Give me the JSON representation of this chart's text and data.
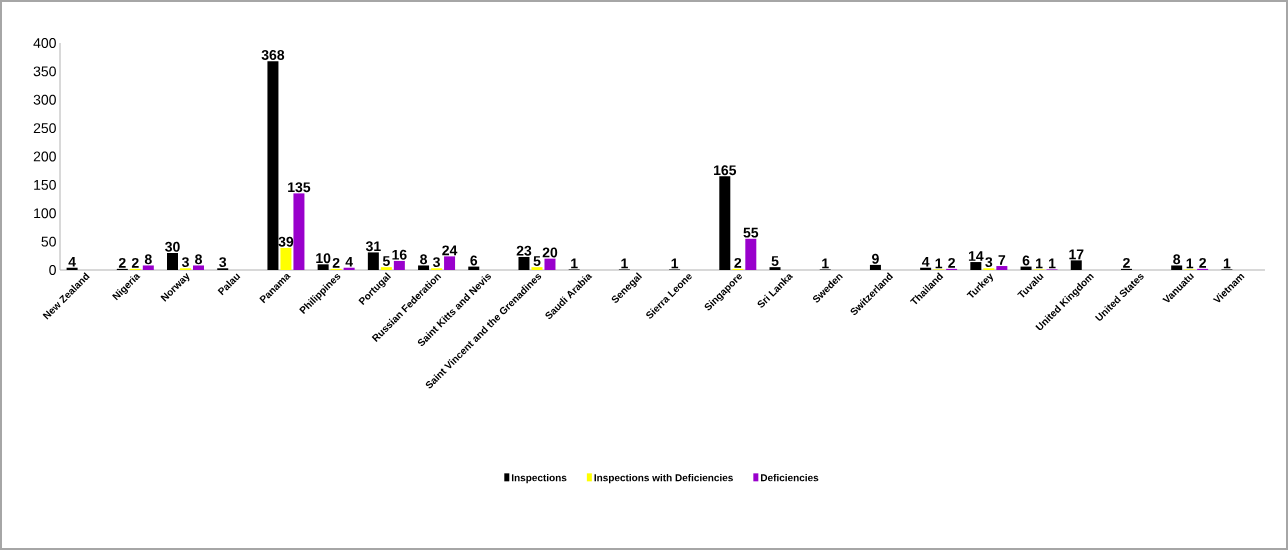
{
  "chart_data": {
    "type": "bar",
    "categories": [
      "New Zealand",
      "Nigeria",
      "Norway",
      "Palau",
      "Panama",
      "Philippines",
      "Portugal",
      "Russian Federation",
      "Saint Kitts and Nevis",
      "Saint Vincent and the Grenadines",
      "Saudi Arabia",
      "Senegal",
      "Sierra Leone",
      "Singapore",
      "Sri Lanka",
      "Sweden",
      "Switzerland",
      "Thailand",
      "Turkey",
      "Tuvalu",
      "United Kingdom",
      "United States",
      "Vanuatu",
      "Vietnam"
    ],
    "series": [
      {
        "name": "Inspections",
        "color": "#000000",
        "values": [
          4,
          2,
          30,
          3,
          368,
          10,
          31,
          8,
          6,
          23,
          1,
          1,
          1,
          165,
          5,
          1,
          9,
          4,
          14,
          6,
          17,
          2,
          8,
          1
        ]
      },
      {
        "name": "Inspections with Deficiencies",
        "color": "#ffff00",
        "values": [
          null,
          2,
          3,
          null,
          39,
          2,
          5,
          3,
          null,
          5,
          null,
          null,
          null,
          2,
          null,
          null,
          null,
          1,
          3,
          1,
          null,
          null,
          1,
          null
        ]
      },
      {
        "name": "Deficiencies",
        "color": "#9900cc",
        "values": [
          null,
          8,
          8,
          null,
          135,
          4,
          16,
          24,
          null,
          20,
          null,
          null,
          null,
          55,
          null,
          null,
          null,
          2,
          7,
          1,
          null,
          null,
          2,
          null
        ]
      }
    ],
    "ylim": [
      0,
      400
    ],
    "yticks": [
      0,
      50,
      100,
      150,
      200,
      250,
      300,
      350,
      400
    ],
    "data_labels": true,
    "legend": "bottom",
    "grid": false
  }
}
